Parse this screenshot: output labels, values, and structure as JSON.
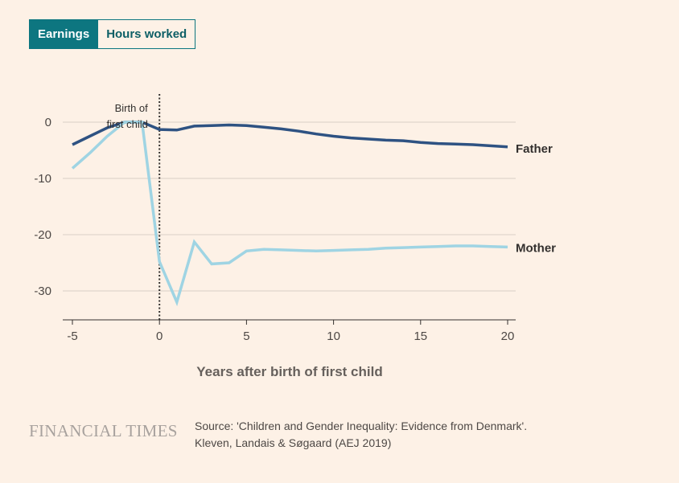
{
  "tabs": [
    {
      "label": "Earnings",
      "active": true
    },
    {
      "label": "Hours worked",
      "active": false
    }
  ],
  "chart_data": {
    "type": "line",
    "title": "",
    "xlabel": "Years after birth of first child",
    "ylabel": "",
    "xlim": [
      -5,
      20
    ],
    "ylim": [
      -35,
      5
    ],
    "xticks": [
      -5,
      0,
      5,
      10,
      15,
      20
    ],
    "yticks": [
      0,
      -10,
      -20,
      -30
    ],
    "grid": true,
    "annotation": {
      "x": 0,
      "text_line1": "Birth of",
      "text_line2": "first child"
    },
    "series": [
      {
        "name": "Father",
        "color": "#2e5282",
        "x": [
          -5,
          -4,
          -3,
          -2,
          -1,
          0,
          1,
          2,
          3,
          4,
          5,
          6,
          7,
          8,
          9,
          10,
          11,
          12,
          13,
          14,
          15,
          16,
          17,
          18,
          19,
          20
        ],
        "values": [
          -4,
          -2.5,
          -1,
          0,
          0,
          -1.3,
          -1.4,
          -0.7,
          -0.6,
          -0.5,
          -0.6,
          -0.9,
          -1.2,
          -1.6,
          -2.1,
          -2.5,
          -2.8,
          -3,
          -3.2,
          -3.3,
          -3.6,
          -3.8,
          -3.9,
          -4,
          -4.2,
          -4.4
        ]
      },
      {
        "name": "Mother",
        "color": "#9fd4e3",
        "x": [
          -5,
          -4,
          -3,
          -2,
          -1,
          0,
          1,
          2,
          3,
          4,
          5,
          6,
          7,
          8,
          9,
          10,
          11,
          12,
          13,
          14,
          15,
          16,
          17,
          18,
          19,
          20
        ],
        "values": [
          -8.2,
          -5.5,
          -2.5,
          0,
          0,
          -24.8,
          -32,
          -21.3,
          -25.2,
          -25,
          -22.9,
          -22.6,
          -22.7,
          -22.8,
          -22.9,
          -22.8,
          -22.7,
          -22.6,
          -22.4,
          -22.3,
          -22.2,
          -22.1,
          -22,
          -22,
          -22.1,
          -22.2
        ]
      }
    ]
  },
  "footer": {
    "logo": "FINANCIAL TIMES",
    "source_line1": "Source: 'Children and Gender Inequality: Evidence from Denmark'.",
    "source_line2": "Kleven, Landais & Søgaard (AEJ 2019)"
  }
}
